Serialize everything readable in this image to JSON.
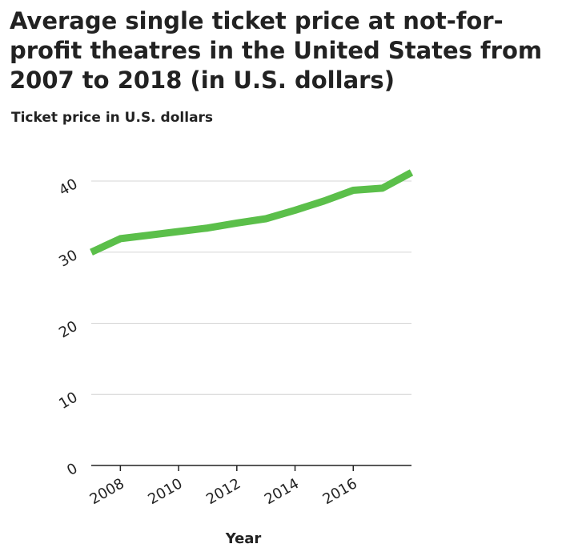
{
  "chart_data": {
    "type": "line",
    "title": "Average single ticket price at not-for-profit theatres in the United States from 2007 to 2018 (in U.S. dollars)",
    "ylabel": "Ticket price in U.S. dollars",
    "xlabel": "Year",
    "xlim": [
      2007,
      2018
    ],
    "ylim": [
      0,
      40
    ],
    "x_ticks": [
      2008,
      2010,
      2012,
      2014,
      2016
    ],
    "x_tick_labels": [
      "2008",
      "2010",
      "2012",
      "2014",
      "2016"
    ],
    "y_ticks": [
      0,
      10,
      20,
      30,
      40
    ],
    "y_tick_labels": [
      "0",
      "10",
      "20",
      "30",
      "40"
    ],
    "grid": "horizontal",
    "series": [
      {
        "color": "#5bbf4a",
        "x": [
          2007,
          2008,
          2009,
          2010,
          2011,
          2012,
          2013,
          2014,
          2015,
          2016,
          2017,
          2018
        ],
        "values": [
          30.0,
          31.9,
          32.4,
          32.9,
          33.4,
          34.1,
          34.7,
          35.9,
          37.2,
          38.7,
          39.0,
          41.2
        ]
      }
    ]
  }
}
